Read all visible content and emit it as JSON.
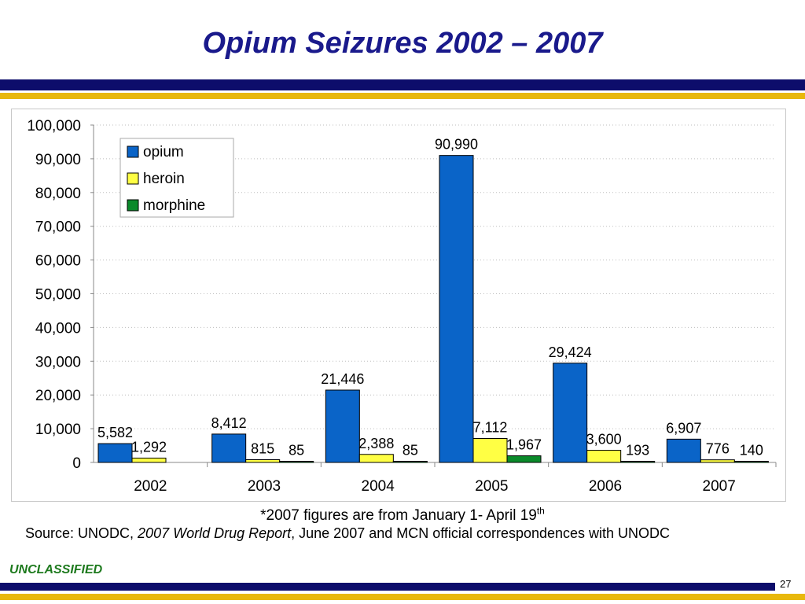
{
  "slide": {
    "title": "Opium Seizures 2002 – 2007",
    "footnote_main": "*2007 figures are from January 1- April 19",
    "footnote_sup": "th",
    "source_prefix": "Source: UNODC, ",
    "source_title": "2007 World Drug Report",
    "source_suffix": ", June 2007 and MCN official correspondences with UNODC",
    "classification": "UNCLASSIFIED",
    "page_number": "27"
  },
  "chart_data": {
    "type": "bar",
    "title": "",
    "xlabel": "",
    "ylabel": "",
    "categories": [
      "2002",
      "2003",
      "2004",
      "2005",
      "2006",
      "2007"
    ],
    "series": [
      {
        "name": "opium",
        "color": "#0a64c8",
        "values": [
          5582,
          8412,
          21446,
          90990,
          29424,
          6907
        ],
        "labels": [
          "5,582",
          "8,412",
          "21,446",
          "90,990",
          "29,424",
          "6,907"
        ]
      },
      {
        "name": "heroin",
        "color": "#ffff44",
        "values": [
          1292,
          815,
          2388,
          7112,
          3600,
          776
        ],
        "labels": [
          "1,292",
          "815",
          "2,388",
          "7,112",
          "3,600",
          "776"
        ]
      },
      {
        "name": "morphine",
        "color": "#0a8a2a",
        "values": [
          null,
          85,
          85,
          1967,
          193,
          140
        ],
        "labels": [
          "",
          "85",
          "85",
          "1,967",
          "193",
          "140"
        ]
      }
    ],
    "ylim": [
      0,
      100000
    ],
    "yticks": [
      0,
      10000,
      20000,
      30000,
      40000,
      50000,
      60000,
      70000,
      80000,
      90000,
      100000
    ],
    "ytick_labels": [
      "0",
      "10,000",
      "20,000",
      "30,000",
      "40,000",
      "50,000",
      "60,000",
      "70,000",
      "80,000",
      "90,000",
      "100,000"
    ],
    "grid": true,
    "legend": "top-left"
  }
}
